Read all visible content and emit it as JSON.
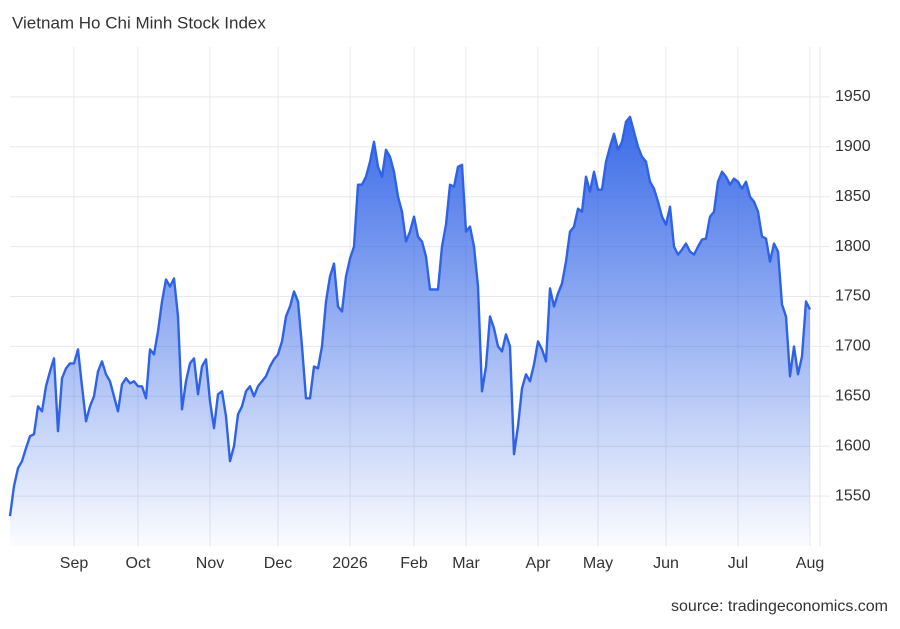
{
  "chart_data": {
    "type": "area",
    "title": "Vietnam Ho Chi Minh Stock Index",
    "source": "source: tradingeconomics.com",
    "color": "#2f62e6",
    "grid": true,
    "ylim": [
      1500,
      2000
    ],
    "yticks": [
      1550,
      1600,
      1650,
      1700,
      1750,
      1800,
      1850,
      1900,
      1950
    ],
    "categories": [
      null,
      null,
      null,
      null,
      null,
      null,
      null,
      null,
      null,
      null,
      null,
      null,
      null,
      null,
      null,
      null,
      "Sep",
      null,
      null,
      null,
      null,
      null,
      null,
      null,
      null,
      null,
      null,
      null,
      null,
      null,
      null,
      null,
      "Oct",
      null,
      null,
      null,
      null,
      null,
      null,
      null,
      null,
      null,
      null,
      null,
      null,
      null,
      null,
      null,
      null,
      null,
      "Nov",
      null,
      null,
      null,
      null,
      null,
      null,
      null,
      null,
      null,
      null,
      null,
      null,
      null,
      null,
      null,
      null,
      "Dec",
      null,
      null,
      null,
      null,
      null,
      null,
      null,
      null,
      null,
      null,
      null,
      null,
      null,
      null,
      null,
      null,
      null,
      "2026",
      null,
      null,
      null,
      null,
      null,
      null,
      null,
      null,
      null,
      null,
      null,
      null,
      null,
      null,
      null,
      "Feb",
      null,
      null,
      null,
      null,
      null,
      null,
      null,
      null,
      null,
      null,
      null,
      null,
      "Mar",
      null,
      null,
      null,
      null,
      null,
      null,
      null,
      null,
      null,
      null,
      null,
      null,
      null,
      null,
      null,
      null,
      null,
      "Apr",
      null,
      null,
      null,
      null,
      null,
      null,
      null,
      null,
      null,
      null,
      null,
      null,
      null,
      null,
      "May",
      null,
      null,
      null,
      null,
      null,
      null,
      null,
      null,
      null,
      null,
      null,
      null,
      null,
      null,
      null,
      null,
      "Jun",
      null,
      null,
      null,
      null,
      null,
      null,
      null,
      null,
      null,
      null,
      null,
      null,
      null,
      null,
      null,
      null,
      null,
      "Jul",
      null,
      null,
      null,
      null,
      null,
      null,
      null,
      null,
      null,
      null,
      null,
      null,
      null,
      null,
      null,
      null,
      null,
      "Aug"
    ],
    "values": [
      1530,
      1560,
      1578,
      1585,
      1598,
      1610,
      1612,
      1640,
      1635,
      1660,
      1675,
      1688,
      1615,
      1668,
      1678,
      1683,
      1683,
      1697,
      1660,
      1625,
      1640,
      1650,
      1675,
      1685,
      1672,
      1665,
      1650,
      1635,
      1662,
      1668,
      1663,
      1665,
      1660,
      1660,
      1648,
      1697,
      1692,
      1715,
      1745,
      1767,
      1760,
      1768,
      1730,
      1637,
      1665,
      1683,
      1688,
      1652,
      1680,
      1687,
      1645,
      1618,
      1652,
      1655,
      1630,
      1585,
      1600,
      1632,
      1640,
      1655,
      1660,
      1650,
      1660,
      1665,
      1670,
      1680,
      1687,
      1692,
      1705,
      1730,
      1740,
      1755,
      1745,
      1700,
      1648,
      1648,
      1680,
      1678,
      1700,
      1745,
      1770,
      1783,
      1740,
      1735,
      1770,
      1788,
      1800,
      1862,
      1862,
      1870,
      1885,
      1905,
      1880,
      1870,
      1897,
      1890,
      1875,
      1850,
      1835,
      1805,
      1815,
      1830,
      1810,
      1805,
      1790,
      1757,
      1757,
      1757,
      1800,
      1822,
      1862,
      1860,
      1880,
      1882,
      1815,
      1820,
      1800,
      1760,
      1655,
      1680,
      1730,
      1718,
      1700,
      1695,
      1712,
      1700,
      1592,
      1620,
      1658,
      1672,
      1665,
      1682,
      1705,
      1697,
      1685,
      1758,
      1740,
      1753,
      1763,
      1785,
      1815,
      1820,
      1838,
      1835,
      1870,
      1855,
      1875,
      1857,
      1857,
      1885,
      1900,
      1913,
      1897,
      1905,
      1925,
      1930,
      1915,
      1900,
      1890,
      1885,
      1865,
      1858,
      1845,
      1830,
      1822,
      1840,
      1800,
      1792,
      1797,
      1803,
      1795,
      1792,
      1800,
      1807,
      1808,
      1830,
      1835,
      1865,
      1875,
      1870,
      1862,
      1868,
      1865,
      1858,
      1865,
      1850,
      1845,
      1835,
      1810,
      1808,
      1785,
      1803,
      1795,
      1742,
      1730,
      1670,
      1700,
      1672,
      1690,
      1745,
      1737
    ]
  }
}
